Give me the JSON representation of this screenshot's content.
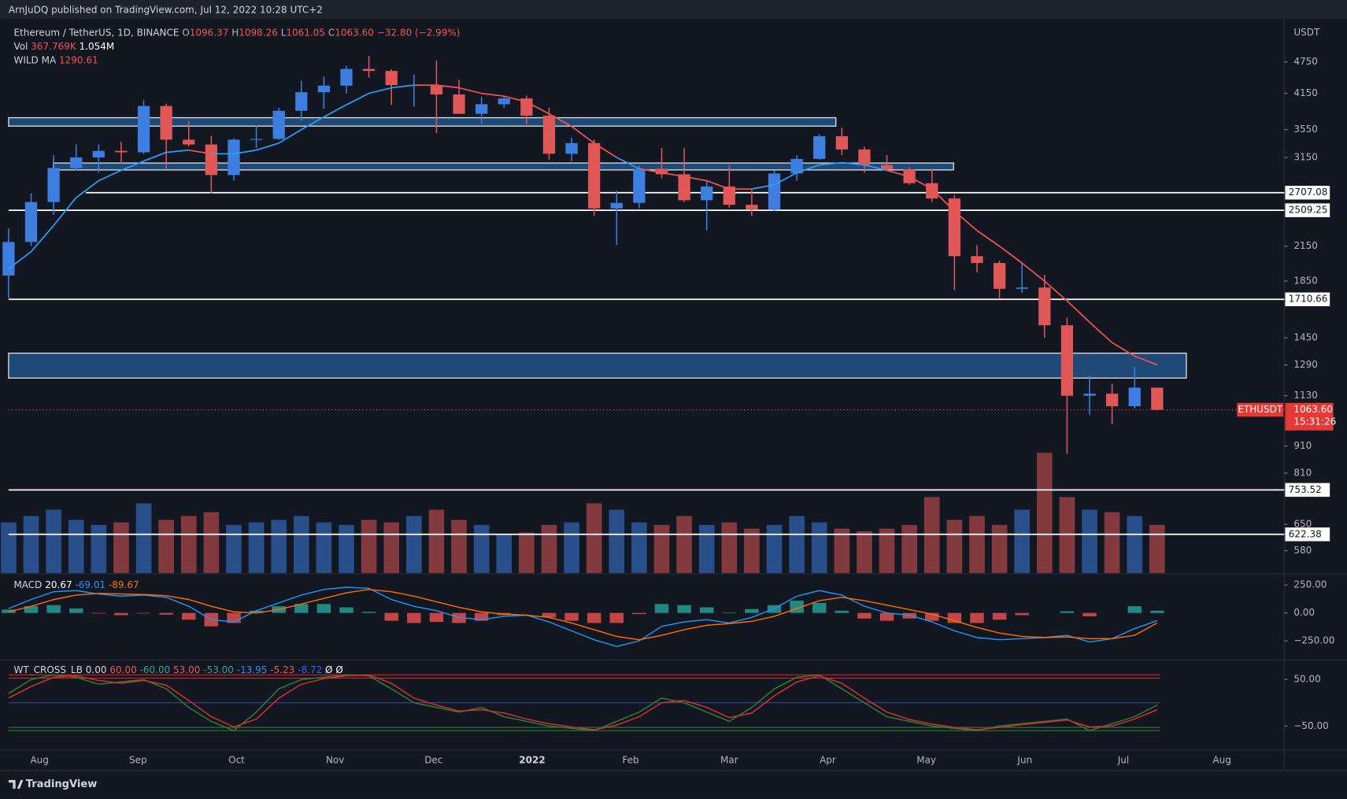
{
  "header": {
    "publisher": "ArnJuDQ published on TradingView.com, Jul 12, 2022 10:28 UTC+2",
    "symbol": "Ethereum / TetherUS, 1D, BINANCE",
    "ohlc": [
      "O",
      "1096.37",
      "H",
      "1098.26",
      "L",
      "1061.05",
      "C",
      "1063.60",
      "−32.80 (−2.99%)"
    ],
    "brand": "TradingView"
  },
  "chart_data": [
    {
      "type": "candlestick",
      "y_label": "USDT",
      "log_scale": true,
      "ylim": [
        527,
        5715
      ],
      "yticks": [
        4750,
        4150,
        3550,
        3150,
        2150,
        1850,
        1450,
        1290,
        1130,
        910,
        810,
        650,
        580
      ],
      "categories": [
        "Aug",
        "Sep",
        "Oct",
        "Nov",
        "Dec",
        "2022",
        "Feb",
        "Mar",
        "Apr",
        "May",
        "Jun",
        "Jul",
        "Aug"
      ],
      "up_color": "#3d7ee0",
      "down_color": "#e05757",
      "candles": [
        [
          1895,
          2320,
          1720,
          2190
        ],
        [
          2190,
          2700,
          2150,
          2600
        ],
        [
          2600,
          3180,
          2460,
          3010
        ],
        [
          3010,
          3330,
          2980,
          3150
        ],
        [
          3150,
          3330,
          2950,
          3240
        ],
        [
          3240,
          3370,
          3060,
          3220
        ],
        [
          3220,
          4030,
          3200,
          3930
        ],
        [
          3930,
          3970,
          3000,
          3400
        ],
        [
          3400,
          3680,
          3300,
          3330
        ],
        [
          3330,
          3460,
          2700,
          2920
        ],
        [
          2920,
          3420,
          2850,
          3400
        ],
        [
          3400,
          3620,
          3280,
          3410
        ],
        [
          3410,
          3900,
          3400,
          3850
        ],
        [
          3850,
          4380,
          3690,
          4170
        ],
        [
          4170,
          4460,
          3880,
          4290
        ],
        [
          4290,
          4670,
          4150,
          4610
        ],
        [
          4610,
          4870,
          4440,
          4570
        ],
        [
          4570,
          4600,
          3950,
          4300
        ],
        [
          4300,
          4500,
          3920,
          4300
        ],
        [
          4300,
          4780,
          3500,
          4130
        ],
        [
          4130,
          4400,
          3800,
          3800
        ],
        [
          3800,
          4090,
          3640,
          3960
        ],
        [
          3960,
          4100,
          3900,
          4060
        ],
        [
          4060,
          4110,
          3630,
          3770
        ],
        [
          3770,
          3900,
          3120,
          3200
        ],
        [
          3200,
          3430,
          3100,
          3350
        ],
        [
          3350,
          3400,
          2450,
          2530
        ],
        [
          2530,
          2730,
          2160,
          2590
        ],
        [
          2590,
          3040,
          2530,
          3000
        ],
        [
          3000,
          3280,
          2880,
          2930
        ],
        [
          2930,
          3280,
          2600,
          2620
        ],
        [
          2620,
          2850,
          2300,
          2780
        ],
        [
          2780,
          3050,
          2540,
          2570
        ],
        [
          2570,
          2740,
          2450,
          2520
        ],
        [
          2520,
          2980,
          2500,
          2940
        ],
        [
          2940,
          3180,
          2850,
          3130
        ],
        [
          3130,
          3480,
          3120,
          3450
        ],
        [
          3450,
          3580,
          3180,
          3260
        ],
        [
          3260,
          3300,
          2950,
          3050
        ],
        [
          3050,
          3180,
          2970,
          2990
        ],
        [
          2990,
          3020,
          2800,
          2820
        ],
        [
          2820,
          3000,
          2600,
          2640
        ],
        [
          2640,
          2680,
          1780,
          2060
        ],
        [
          2060,
          2160,
          1920,
          2000
        ],
        [
          2000,
          2020,
          1720,
          1790
        ],
        [
          1790,
          2000,
          1760,
          1800
        ],
        [
          1800,
          1900,
          1450,
          1530
        ],
        [
          1530,
          1580,
          880,
          1130
        ],
        [
          1130,
          1230,
          1040,
          1140
        ],
        [
          1140,
          1190,
          1000,
          1080
        ],
        [
          1080,
          1280,
          1070,
          1170
        ],
        [
          1170,
          1170,
          1061.05,
          1063.6
        ]
      ],
      "ma": {
        "name": "WILD MA",
        "value": 1290.61,
        "values": [
          1950,
          2100,
          2350,
          2650,
          2850,
          2980,
          3100,
          3220,
          3250,
          3200,
          3200,
          3250,
          3350,
          3550,
          3750,
          3950,
          4150,
          4250,
          4300,
          4300,
          4250,
          4150,
          4100,
          4000,
          3800,
          3600,
          3350,
          3150,
          3000,
          2950,
          2900,
          2850,
          2750,
          2750,
          2800,
          2950,
          3050,
          3080,
          3050,
          2980,
          2900,
          2750,
          2500,
          2300,
          2150,
          2000,
          1850,
          1700,
          1550,
          1420,
          1340,
          1290.61
        ]
      },
      "volume": {
        "name": "Vol",
        "labels": [
          "367.769K",
          "1.054M"
        ],
        "values": [
          400,
          450,
          500,
          420,
          380,
          400,
          550,
          420,
          450,
          480,
          380,
          400,
          420,
          450,
          400,
          380,
          420,
          400,
          450,
          500,
          420,
          380,
          300,
          320,
          380,
          400,
          550,
          500,
          400,
          380,
          450,
          380,
          400,
          350,
          380,
          450,
          400,
          350,
          330,
          350,
          380,
          600,
          420,
          450,
          380,
          500,
          950,
          600,
          500,
          480,
          450,
          380
        ]
      },
      "levels": [
        2707.08,
        2509.25,
        1710.66,
        753.52,
        622.38
      ],
      "zones": [
        [
          3604,
          3737
        ],
        [
          2985,
          3075
        ],
        [
          1219,
          1357
        ]
      ],
      "last_price": {
        "name": "ETHUSDT",
        "value": 1063.6,
        "label": "1063.60",
        "countdown": "15:31:26"
      }
    },
    {
      "type": "macd",
      "name": "MACD",
      "legend": [
        20.67,
        -69.01,
        -89.67
      ],
      "ylim": [
        -396,
        319
      ],
      "yticks": [
        {
          "value": 250,
          "label": "250.00"
        },
        {
          "value": 0,
          "label": "0.00"
        },
        {
          "value": -250,
          "label": "−250.00"
        }
      ],
      "macd": [
        40,
        120,
        190,
        200,
        170,
        150,
        160,
        140,
        60,
        -60,
        -80,
        20,
        90,
        160,
        210,
        230,
        220,
        120,
        60,
        20,
        -40,
        -60,
        -30,
        -20,
        -80,
        -160,
        -240,
        -300,
        -250,
        -120,
        -80,
        -60,
        -90,
        -40,
        40,
        150,
        200,
        160,
        60,
        0,
        -20,
        -80,
        -160,
        -220,
        -240,
        -230,
        -220,
        -200,
        -260,
        -230,
        -140,
        -69.01
      ],
      "signal": [
        10,
        60,
        120,
        160,
        175,
        170,
        165,
        155,
        120,
        60,
        10,
        0,
        30,
        80,
        130,
        180,
        210,
        190,
        150,
        100,
        50,
        10,
        -10,
        -20,
        -40,
        -90,
        -150,
        -210,
        -240,
        -200,
        -150,
        -110,
        -95,
        -75,
        -30,
        40,
        110,
        140,
        110,
        70,
        30,
        -10,
        -70,
        -130,
        -180,
        -210,
        -220,
        -215,
        -230,
        -230,
        -200,
        -89.67
      ],
      "histogram": [
        30,
        60,
        70,
        40,
        -5,
        -20,
        -5,
        -15,
        -60,
        -120,
        -90,
        20,
        60,
        80,
        80,
        50,
        10,
        -70,
        -90,
        -80,
        -90,
        -70,
        -20,
        0,
        -40,
        -70,
        -90,
        -90,
        -10,
        80,
        70,
        50,
        5,
        35,
        70,
        110,
        90,
        20,
        -50,
        -70,
        -50,
        -70,
        -90,
        -90,
        -60,
        -20,
        0,
        15,
        -30,
        0,
        60,
        20.67
      ],
      "macd_color": "#2196f3",
      "signal_color": "#ff6d00"
    },
    {
      "type": "oscillator",
      "name": "WT_CROSS_LB",
      "legend": [
        "0.00",
        "60.00",
        "-60.00",
        "53.00",
        "-53.00",
        "-13.95",
        "-5.23",
        "-8.72",
        "Ø",
        "Ø"
      ],
      "ylim": [
        -96,
        87
      ],
      "yticks": [
        {
          "value": 50,
          "label": "50.00"
        },
        {
          "value": -50,
          "label": "−50.00"
        }
      ],
      "levels": [
        60,
        53,
        -60,
        -53,
        0
      ],
      "wt1": [
        20,
        50,
        60,
        55,
        40,
        45,
        50,
        30,
        -10,
        -40,
        -60,
        -20,
        30,
        50,
        55,
        60,
        58,
        30,
        0,
        -10,
        -20,
        -10,
        -30,
        -40,
        -50,
        -55,
        -60,
        -40,
        -20,
        10,
        0,
        -20,
        -40,
        -10,
        30,
        55,
        60,
        30,
        0,
        -30,
        -40,
        -50,
        -55,
        -60,
        -50,
        -45,
        -40,
        -35,
        -60,
        -45,
        -30,
        -5
      ],
      "wt2": [
        10,
        35,
        55,
        58,
        48,
        42,
        48,
        38,
        5,
        -30,
        -52,
        -35,
        10,
        40,
        52,
        58,
        60,
        42,
        10,
        -5,
        -18,
        -15,
        -22,
        -35,
        -45,
        -52,
        -58,
        -48,
        -30,
        0,
        5,
        -10,
        -32,
        -22,
        15,
        45,
        58,
        42,
        10,
        -20,
        -36,
        -46,
        -53,
        -58,
        -53,
        -47,
        -42,
        -37,
        -52,
        -50,
        -35,
        -15
      ],
      "wt1_color": "#2e7d32",
      "wt2_color": "#d32f2f"
    }
  ]
}
